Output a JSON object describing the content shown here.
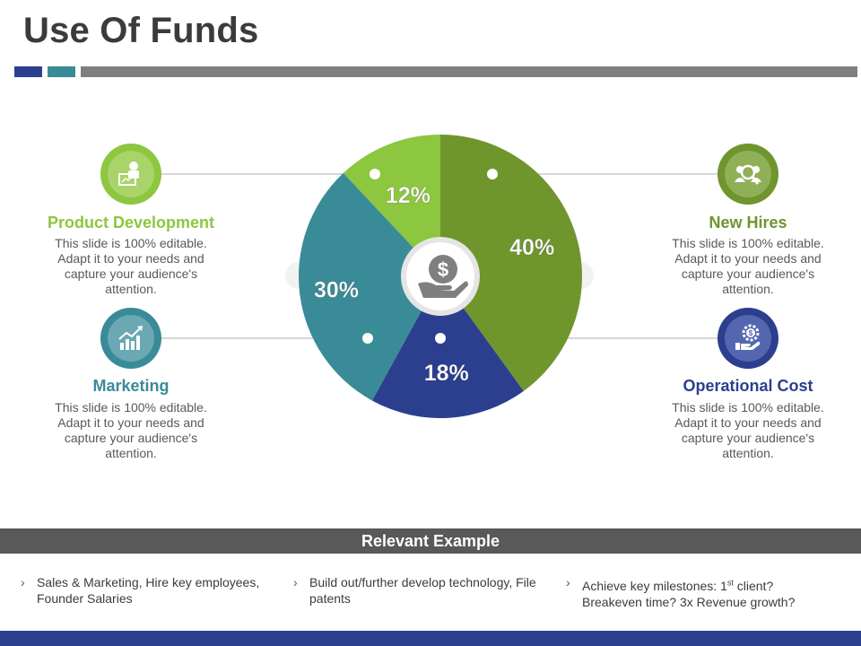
{
  "title": "Use Of Funds",
  "colors": {
    "green": "#6f952d",
    "light_green": "#8dc63f",
    "teal": "#3a8b98",
    "navy": "#2c3f8f",
    "dark_gray": "#595959",
    "bar_gray": "#7f7f7f"
  },
  "center_icon": "dollar-hand-icon",
  "categories": [
    {
      "title": "Product Development",
      "desc": "This slide is 100% editable. Adapt it to your needs and capture your audience's attention.",
      "icon": "presenter-icon",
      "color": "#8dc63f"
    },
    {
      "title": "Marketing",
      "desc": "This slide is 100% editable. Adapt it to your needs and capture your audience's attention.",
      "icon": "growth-chart-icon",
      "color": "#3a8b98"
    },
    {
      "title": "New Hires",
      "desc": "This slide is 100% editable. Adapt it to your needs and capture your audience's attention.",
      "icon": "team-search-icon",
      "color": "#6f952d"
    },
    {
      "title": "Operational Cost",
      "desc": "This slide is 100% editable. Adapt it to your needs and capture your audience's attention.",
      "icon": "gear-dollar-icon",
      "color": "#2c3f8f"
    }
  ],
  "example": {
    "heading": "Relevant Example",
    "items": [
      {
        "text": "Sales & Marketing, Hire key employees, Founder Salaries"
      },
      {
        "text": "Build out/further develop technology, File patents"
      },
      {
        "text_before": "Achieve key milestones: 1",
        "sup": "st",
        "text_after": " client? Breakeven time? 3x Revenue growth?"
      }
    ]
  },
  "chart_data": {
    "type": "pie",
    "unit": "%",
    "slices": [
      {
        "label": "New Hires",
        "value": 40,
        "display": "40%",
        "color": "#6f952d"
      },
      {
        "label": "Operational Cost",
        "value": 18,
        "display": "18%",
        "color": "#2c3f8f"
      },
      {
        "label": "Marketing",
        "value": 30,
        "display": "30%",
        "color": "#3a8b98"
      },
      {
        "label": "Product Development",
        "value": 12,
        "display": "12%",
        "color": "#8dc63f"
      }
    ]
  }
}
